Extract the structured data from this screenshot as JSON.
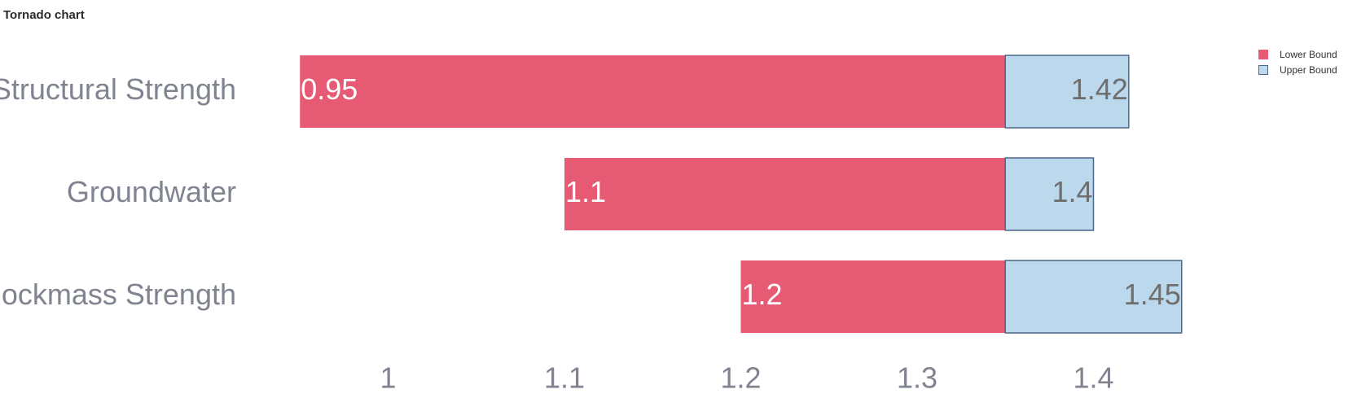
{
  "title": "Tornado chart",
  "colors": {
    "lower": "#e75a73",
    "upper": "#bcd8ec",
    "upper_border": "#4d6688",
    "axis_text": "#808390",
    "value_text_lower": "#ffffff",
    "value_text_upper": "#6e6e6e"
  },
  "legend": [
    {
      "label": "Lower Bound",
      "color": "#e75a73"
    },
    {
      "label": "Upper Bound",
      "color": "#bcd8ec"
    }
  ],
  "chart_data": {
    "type": "bar",
    "orientation": "horizontal",
    "title": "Tornado chart",
    "base": 1.35,
    "categories": [
      "Structural Strength",
      "Groundwater",
      "Rockmass Strength"
    ],
    "series": [
      {
        "name": "Lower Bound",
        "values": [
          0.95,
          1.1,
          1.2
        ]
      },
      {
        "name": "Upper Bound",
        "values": [
          1.42,
          1.4,
          1.45
        ]
      }
    ],
    "x_ticks": [
      "1",
      "1.1",
      "1.2",
      "1.3",
      "1.4"
    ],
    "xlim": [
      0.95,
      1.45
    ],
    "grid": false,
    "legend_position": "top-right"
  }
}
